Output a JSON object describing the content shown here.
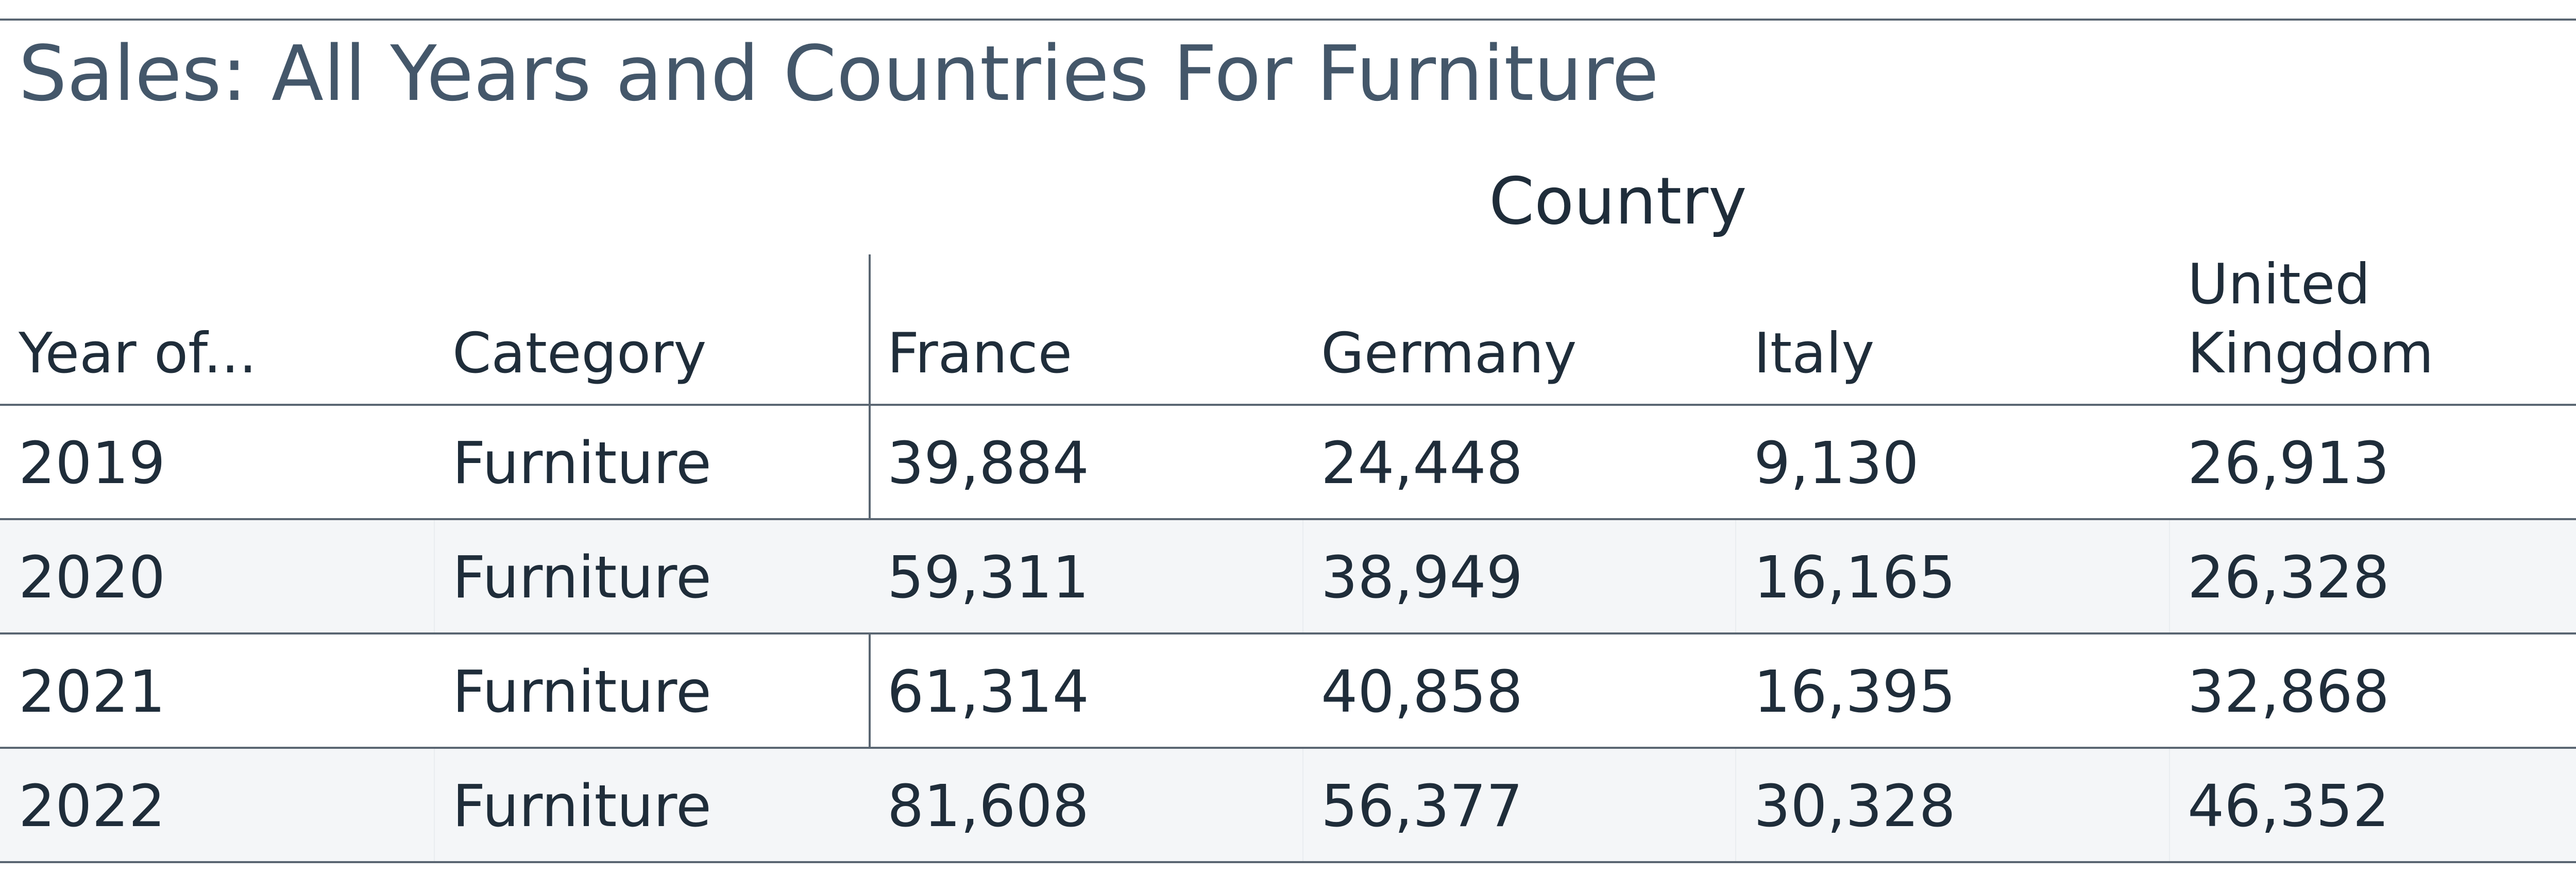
{
  "chart_data": {
    "type": "table",
    "title": "Sales: All Years and Countries For Furniture",
    "column_group": "Country",
    "columns": [
      "Year of...",
      "Category",
      "France",
      "Germany",
      "Italy",
      "United Kingdom"
    ],
    "column_label_lines": [
      [
        "Year of..."
      ],
      [
        "Category"
      ],
      [
        "France"
      ],
      [
        "Germany"
      ],
      [
        "Italy"
      ],
      [
        "United",
        "Kingdom"
      ]
    ],
    "rows": [
      [
        "2019",
        "Furniture",
        "39,884",
        "24,448",
        "9,130",
        "26,913"
      ],
      [
        "2020",
        "Furniture",
        "59,311",
        "38,949",
        "16,165",
        "26,328"
      ],
      [
        "2021",
        "Furniture",
        "61,314",
        "40,858",
        "16,395",
        "32,868"
      ],
      [
        "2022",
        "Furniture",
        "81,608",
        "56,377",
        "30,328",
        "46,352"
      ]
    ],
    "series": [
      {
        "name": "France",
        "values": [
          39884,
          59311,
          61314,
          81608
        ]
      },
      {
        "name": "Germany",
        "values": [
          24448,
          38949,
          40858,
          56377
        ]
      },
      {
        "name": "Italy",
        "values": [
          9130,
          16165,
          16395,
          30328
        ]
      },
      {
        "name": "United Kingdom",
        "values": [
          26913,
          26328,
          32868,
          46352
        ]
      }
    ],
    "categories": [
      "2019",
      "2020",
      "2021",
      "2022"
    ]
  },
  "colors": {
    "title": "#44576a",
    "text": "#1f2d3a",
    "border": "#5a6672",
    "alt_row": "#f4f6f8"
  }
}
